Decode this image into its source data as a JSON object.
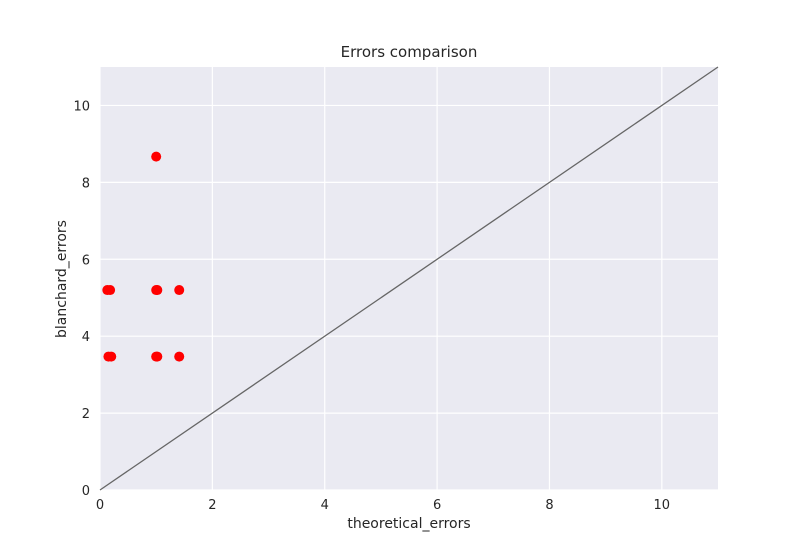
{
  "chart_data": {
    "type": "scatter",
    "title": "Errors comparison",
    "xlabel": "theoretical_errors",
    "ylabel": "blanchard_errors",
    "xlim": [
      0,
      11
    ],
    "ylim": [
      0,
      11
    ],
    "xticks": [
      0,
      2,
      4,
      6,
      8,
      10
    ],
    "yticks": [
      0,
      2,
      4,
      6,
      8,
      10
    ],
    "grid": true,
    "background_color": "#EAEAF2",
    "grid_color": "#FFFFFF",
    "marker_color": "#FF0000",
    "line_color": "#666666",
    "series": [
      {
        "type": "scatter",
        "points": [
          {
            "x": 1.0,
            "y": 8.67
          },
          {
            "x": 0.13,
            "y": 5.2
          },
          {
            "x": 0.18,
            "y": 5.2
          },
          {
            "x": 1.0,
            "y": 5.2
          },
          {
            "x": 1.02,
            "y": 5.2
          },
          {
            "x": 1.41,
            "y": 5.2
          },
          {
            "x": 0.15,
            "y": 3.47
          },
          {
            "x": 0.2,
            "y": 3.47
          },
          {
            "x": 1.0,
            "y": 3.47
          },
          {
            "x": 1.02,
            "y": 3.47
          },
          {
            "x": 1.41,
            "y": 3.47
          }
        ]
      },
      {
        "type": "line",
        "points": [
          {
            "x": 0,
            "y": 0
          },
          {
            "x": 11,
            "y": 11
          }
        ]
      }
    ]
  }
}
